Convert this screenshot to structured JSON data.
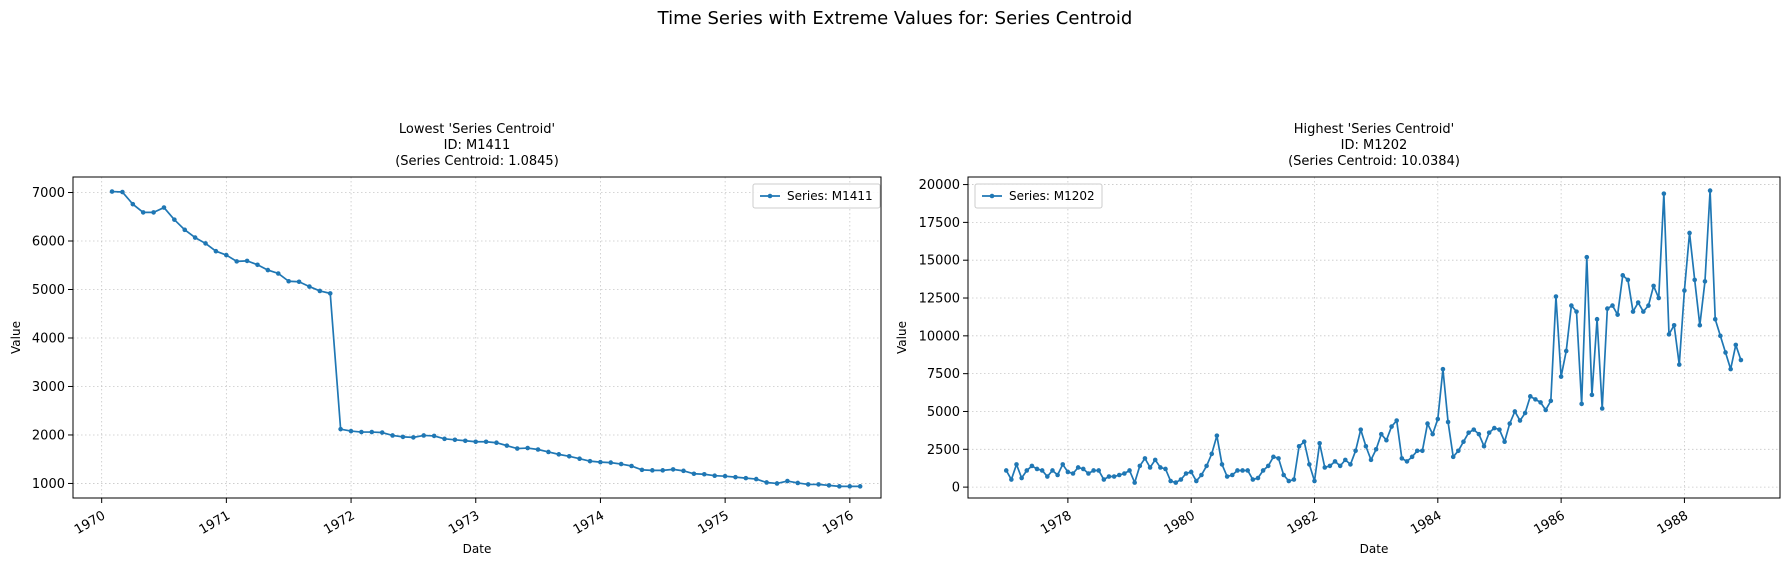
{
  "suptitle": "Time Series with Extreme Values for: Series Centroid",
  "chart_data": [
    {
      "type": "line",
      "title": [
        "Lowest 'Series Centroid'",
        "ID: M1411",
        "(Series Centroid: 1.0845)"
      ],
      "xlabel": "Date",
      "ylabel": "Value",
      "xlim": [
        1969.77,
        1976.25
      ],
      "ylim": [
        700,
        7320
      ],
      "xticks": [
        1970,
        1971,
        1972,
        1973,
        1974,
        1975,
        1976
      ],
      "xtick_labels": [
        "1970",
        "1971",
        "1972",
        "1973",
        "1974",
        "1975",
        "1976"
      ],
      "yticks": [
        1000,
        2000,
        3000,
        4000,
        5000,
        6000,
        7000
      ],
      "ytick_labels": [
        "1000",
        "2000",
        "3000",
        "4000",
        "5000",
        "6000",
        "7000"
      ],
      "grid": true,
      "legend_position": "upper right",
      "series": [
        {
          "name": "Series: M1411",
          "color": "#1f77b4",
          "x_start": 1970.083,
          "x_step": 0.08333,
          "values": [
            7020,
            7010,
            6760,
            6590,
            6590,
            6690,
            6440,
            6230,
            6070,
            5950,
            5790,
            5710,
            5580,
            5590,
            5510,
            5400,
            5330,
            5170,
            5160,
            5060,
            4970,
            4920,
            2120,
            2080,
            2060,
            2060,
            2050,
            1990,
            1960,
            1950,
            1990,
            1980,
            1920,
            1900,
            1880,
            1860,
            1860,
            1840,
            1780,
            1720,
            1730,
            1700,
            1650,
            1600,
            1560,
            1510,
            1460,
            1440,
            1430,
            1400,
            1360,
            1280,
            1270,
            1270,
            1290,
            1260,
            1200,
            1190,
            1160,
            1150,
            1130,
            1110,
            1090,
            1020,
            1000,
            1050,
            1010,
            980,
            980,
            960,
            940,
            940,
            940
          ]
        }
      ]
    },
    {
      "type": "line",
      "title": [
        "Highest 'Series Centroid'",
        "ID: M1202",
        "(Series Centroid: 10.0384)"
      ],
      "xlabel": "Date",
      "ylabel": "Value",
      "xlim": [
        1976.38,
        1989.55
      ],
      "ylim": [
        -720,
        20500
      ],
      "xticks": [
        1978,
        1980,
        1982,
        1984,
        1986,
        1988
      ],
      "xtick_labels": [
        "1978",
        "1980",
        "1982",
        "1984",
        "1986",
        "1988"
      ],
      "yticks": [
        0,
        2500,
        5000,
        7500,
        10000,
        12500,
        15000,
        17500,
        20000
      ],
      "ytick_labels": [
        "0",
        "2500",
        "5000",
        "7500",
        "10000",
        "12500",
        "15000",
        "17500",
        "20000"
      ],
      "grid": true,
      "legend_position": "upper left",
      "series": [
        {
          "name": "Series: M1202",
          "color": "#1f77b4",
          "x_start": 1977.0,
          "x_step": 0.08333,
          "values": [
            1100,
            500,
            1500,
            600,
            1100,
            1400,
            1200,
            1100,
            700,
            1100,
            800,
            1500,
            1000,
            900,
            1300,
            1200,
            900,
            1100,
            1100,
            500,
            700,
            700,
            800,
            900,
            1100,
            300,
            1400,
            1900,
            1300,
            1800,
            1300,
            1200,
            400,
            300,
            500,
            900,
            1000,
            400,
            800,
            1400,
            2200,
            3400,
            1500,
            700,
            800,
            1100,
            1100,
            1100,
            500,
            600,
            1100,
            1400,
            2000,
            1900,
            800,
            400,
            500,
            2700,
            3000,
            1500,
            400,
            2900,
            1300,
            1400,
            1700,
            1400,
            1800,
            1500,
            2400,
            3800,
            2700,
            1800,
            2500,
            3500,
            3100,
            4000,
            4400,
            1900,
            1700,
            2000,
            2400,
            2400,
            4200,
            3500,
            4500,
            7800,
            4300,
            2000,
            2400,
            3000,
            3600,
            3800,
            3500,
            2700,
            3600,
            3900,
            3800,
            3000,
            4200,
            5000,
            4400,
            4900,
            6000,
            5800,
            5600,
            5100,
            5700,
            12600,
            7300,
            9000,
            12000,
            11600,
            5500,
            15200,
            6100,
            11100,
            5200,
            11800,
            12000,
            11400,
            14000,
            13700,
            11600,
            12200,
            11600,
            12000,
            13300,
            12500,
            19400,
            10100,
            10700,
            8100,
            13000,
            16800,
            13700,
            10700,
            13600,
            19600,
            11100,
            10000,
            8900,
            7800,
            9400,
            8400
          ]
        }
      ]
    }
  ]
}
